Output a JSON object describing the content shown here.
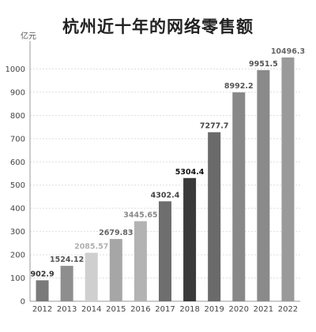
{
  "chart_data": {
    "type": "bar",
    "title": "杭州近十年的网络零售额",
    "ylabel": "亿元",
    "xlabel": "",
    "ylim": [
      0,
      1100
    ],
    "yticks": [
      0,
      100,
      200,
      300,
      400,
      500,
      600,
      700,
      800,
      900,
      1000
    ],
    "grid": true,
    "categories": [
      "2012",
      "2013",
      "2014",
      "2015",
      "2016",
      "2017",
      "2018",
      "2019",
      "2020",
      "2021",
      "2022"
    ],
    "values": [
      90.29,
      152.412,
      208.557,
      267.983,
      344.565,
      430.24,
      530.44,
      727.77,
      899.22,
      995.15,
      1049.63
    ],
    "data_labels": [
      "902.9",
      "1524.12",
      "2085.57",
      "2679.83",
      "3445.65",
      "4302.4",
      "5304.4",
      "7277.7",
      "8992.2",
      "9951.5",
      "10496.3"
    ],
    "bar_colors": [
      "#7a7a7a",
      "#8e8e8e",
      "#cfcfcf",
      "#a6a6a6",
      "#b3b3b3",
      "#6e6e6e",
      "#3a3a3a",
      "#6a6a6a",
      "#888888",
      "#8a8a8a",
      "#9a9a9a"
    ],
    "label_colors": [
      "#333333",
      "#555555",
      "#b0b0b0",
      "#666666",
      "#8a8a8a",
      "#444444",
      "#111111",
      "#444444",
      "#555555",
      "#555555",
      "#666666"
    ]
  }
}
